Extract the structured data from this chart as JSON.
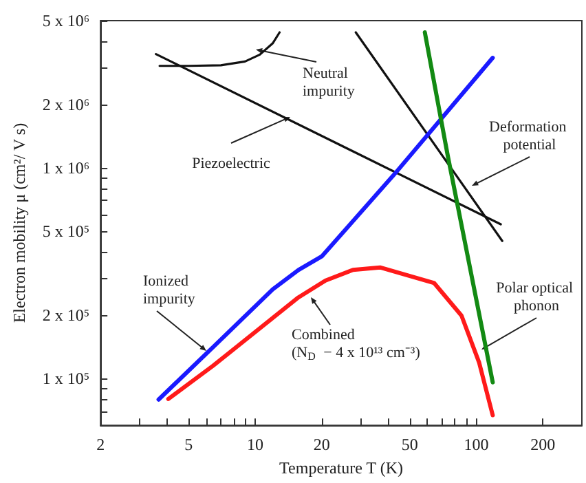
{
  "chart_data": {
    "type": "line",
    "xlabel": "Temperature T (K)",
    "ylabel": "Electron mobility μ (cm²/ V s)",
    "log": "xy",
    "grid": false,
    "legend": false,
    "marker": "none",
    "line_style": "solid",
    "xlim": [
      2,
      300
    ],
    "xticks": [
      2,
      {
        "value": 3,
        "label": null
      },
      {
        "value": 4,
        "label": null
      },
      5,
      {
        "value": 6,
        "label": null
      },
      {
        "value": 7,
        "label": null
      },
      {
        "value": 8,
        "label": null
      },
      {
        "value": 9,
        "label": null
      },
      10,
      20,
      {
        "value": 30,
        "label": null
      },
      {
        "value": 40,
        "label": null
      },
      50,
      {
        "value": 60,
        "label": null
      },
      {
        "value": 70,
        "label": null
      },
      {
        "value": 80,
        "label": null
      },
      {
        "value": 90,
        "label": null
      },
      100,
      200
    ],
    "ylim": [
      60000,
      5000000
    ],
    "yticks": [
      {
        "value": 70000,
        "label": null
      },
      {
        "value": 80000,
        "label": null
      },
      {
        "value": 90000,
        "label": null
      },
      {
        "value": 100000,
        "label": "1 x 10⁵"
      },
      {
        "value": 200000,
        "label": "2 x 10⁵"
      },
      {
        "value": 300000,
        "label": null
      },
      {
        "value": 400000,
        "label": null
      },
      {
        "value": 500000,
        "label": "5 x 10⁵"
      },
      {
        "value": 600000,
        "label": null
      },
      {
        "value": 700000,
        "label": null
      },
      {
        "value": 800000,
        "label": null
      },
      {
        "value": 900000,
        "label": null
      },
      {
        "value": 1000000,
        "label": "1 x 10⁶"
      },
      {
        "value": 2000000,
        "label": "2 x 10⁶"
      },
      {
        "value": 3000000,
        "label": null
      },
      {
        "value": 4000000,
        "label": null
      },
      {
        "value": 5000000,
        "label": "5 x 10⁶"
      }
    ],
    "series": [
      {
        "name": "Neutral impurity",
        "color": "#111111",
        "x": [
          3.7,
          5,
          7,
          9,
          10.5,
          12,
          12.9
        ],
        "values": [
          3050000,
          3050000,
          3070000,
          3200000,
          3450000,
          3900000,
          4400000
        ]
      },
      {
        "name": "Piezoelectric",
        "color": "#111111",
        "x": [
          3.56,
          129
        ],
        "values": [
          3470000,
          540000
        ]
      },
      {
        "name": "Deformation potential",
        "color": "#111111",
        "x": [
          28.5,
          131
        ],
        "values": [
          4400000,
          450000
        ]
      },
      {
        "name": "Ionized impurity",
        "color": "#1a1aff",
        "x": [
          3.66,
          6.45,
          12,
          15.7,
          20,
          43.5,
          118.6
        ],
        "values": [
          79500,
          141000,
          265000,
          328000,
          380000,
          957000,
          3330000
        ]
      },
      {
        "name": "Combined\n(N$_{D}$ − 4 x 10¹³ cm⁻³)",
        "color": "#ff1a1a",
        "x": [
          4.05,
          6.45,
          15.7,
          20.8,
          27.7,
          36.7,
          64.5,
          85.7,
          103,
          118.6
        ],
        "values": [
          80000,
          115000,
          243000,
          292000,
          328000,
          337000,
          284000,
          199000,
          119000,
          67000
        ]
      },
      {
        "name": "Polar optical phonon",
        "color": "#138a13",
        "x": [
          58.5,
          74.3,
          118.6
        ],
        "values": [
          4400000,
          1140000,
          96000
        ]
      }
    ]
  }
}
